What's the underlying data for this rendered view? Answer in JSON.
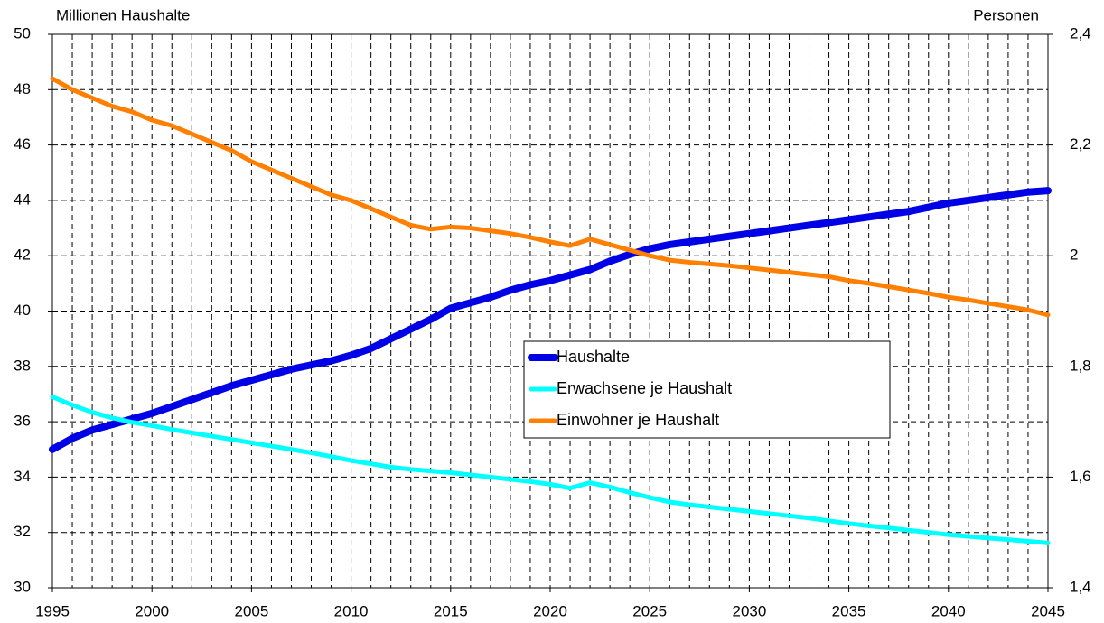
{
  "chart_data": {
    "type": "line",
    "y_label": "Millionen Haushalte",
    "y2_label": "Personen",
    "x": [
      1995,
      1996,
      1997,
      1998,
      1999,
      2000,
      2001,
      2002,
      2003,
      2004,
      2005,
      2006,
      2007,
      2008,
      2009,
      2010,
      2011,
      2012,
      2013,
      2014,
      2015,
      2016,
      2017,
      2018,
      2019,
      2020,
      2021,
      2022,
      2023,
      2024,
      2025,
      2026,
      2027,
      2028,
      2029,
      2030,
      2031,
      2032,
      2033,
      2034,
      2035,
      2036,
      2037,
      2038,
      2039,
      2040,
      2041,
      2042,
      2043,
      2044,
      2045
    ],
    "xlim": [
      1995,
      2045
    ],
    "xticks": [
      1995,
      2000,
      2005,
      2010,
      2015,
      2020,
      2025,
      2030,
      2035,
      2040,
      2045
    ],
    "ylim": [
      30,
      50
    ],
    "yticks": [
      30,
      32,
      34,
      36,
      38,
      40,
      42,
      44,
      46,
      48,
      50
    ],
    "y2lim": [
      1.4,
      2.4
    ],
    "y2ticks": [
      {
        "value": 1.4,
        "label": "1,4"
      },
      {
        "value": 1.6,
        "label": "1,6"
      },
      {
        "value": 1.8,
        "label": "1,8"
      },
      2,
      {
        "value": 2.2,
        "label": "2,2"
      },
      {
        "value": 2.4,
        "label": "2,4"
      }
    ],
    "grid": true,
    "legend": "center",
    "series": [
      {
        "name": "Haushalte",
        "color": "#0000e6",
        "values": [
          35.0,
          35.4,
          35.7,
          35.9,
          36.1,
          36.3,
          36.55,
          36.8,
          37.05,
          37.3,
          37.5,
          37.7,
          37.9,
          38.05,
          38.2,
          38.4,
          38.65,
          39.0,
          39.35,
          39.7,
          40.1,
          40.3,
          40.5,
          40.75,
          40.95,
          41.1,
          41.3,
          41.5,
          41.8,
          42.05,
          42.25,
          42.4,
          42.5,
          42.6,
          42.7,
          42.8,
          42.9,
          43.0,
          43.1,
          43.2,
          43.3,
          43.4,
          43.5,
          43.6,
          43.75,
          43.9,
          44.0,
          44.1,
          44.2,
          44.3,
          44.35
        ]
      },
      {
        "name": "Erwachsene je Haushalt",
        "color": "#00ffff",
        "axis": "y2",
        "values": [
          1.745,
          1.73,
          1.717,
          1.707,
          1.699,
          1.693,
          1.686,
          1.68,
          1.674,
          1.668,
          1.662,
          1.656,
          1.65,
          1.644,
          1.637,
          1.63,
          1.624,
          1.618,
          1.614,
          1.611,
          1.608,
          1.604,
          1.6,
          1.596,
          1.592,
          1.587,
          1.58,
          1.59,
          1.582,
          1.572,
          1.563,
          1.555,
          1.55,
          1.546,
          1.542,
          1.538,
          1.534,
          1.53,
          1.526,
          1.521,
          1.516,
          1.512,
          1.508,
          1.504,
          1.5,
          1.496,
          1.493,
          1.49,
          1.487,
          1.484,
          1.481
        ]
      },
      {
        "name": "Einwohner je Haushalt",
        "color": "#ff8000",
        "axis": "y2",
        "values": [
          2.32,
          2.3,
          2.285,
          2.27,
          2.26,
          2.245,
          2.235,
          2.22,
          2.205,
          2.19,
          2.17,
          2.155,
          2.14,
          2.125,
          2.11,
          2.1,
          2.085,
          2.07,
          2.055,
          2.048,
          2.052,
          2.05,
          2.045,
          2.04,
          2.033,
          2.025,
          2.018,
          2.03,
          2.02,
          2.01,
          2.0,
          1.992,
          1.988,
          1.985,
          1.982,
          1.978,
          1.974,
          1.97,
          1.966,
          1.962,
          1.955,
          1.95,
          1.944,
          1.938,
          1.932,
          1.925,
          1.92,
          1.914,
          1.908,
          1.902,
          1.893
        ]
      }
    ]
  }
}
